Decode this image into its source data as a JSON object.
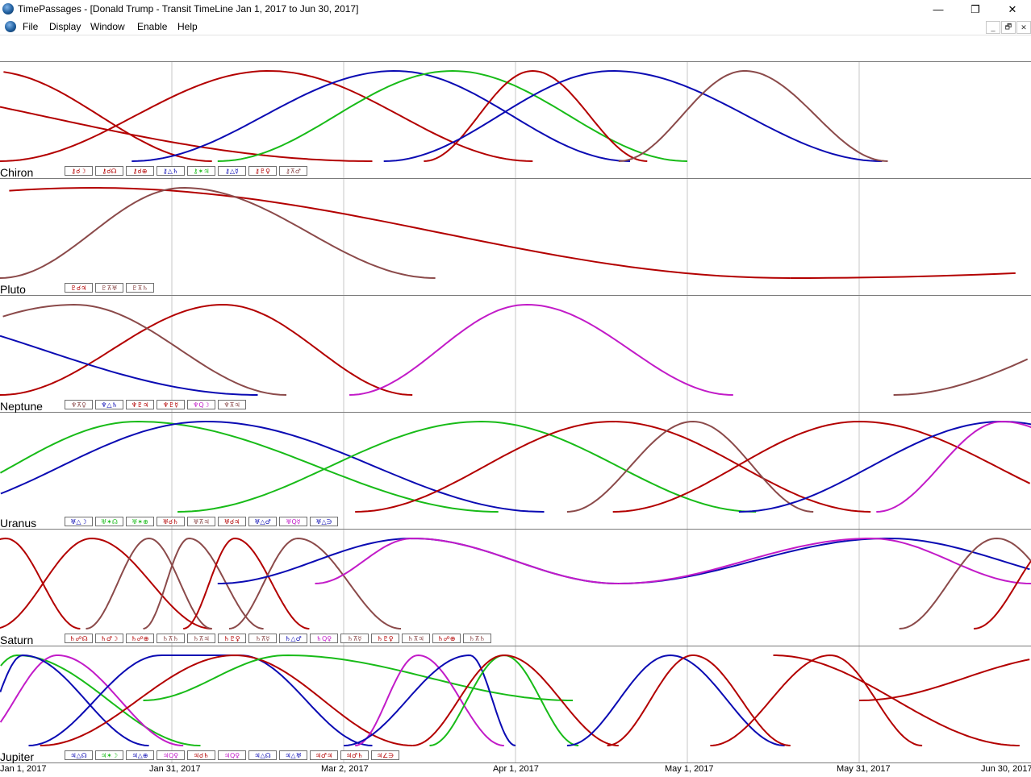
{
  "window": {
    "title": "TimePassages - [Donald Trump - Transit TimeLine Jan 1, 2017 to Jun 30, 2017]",
    "controls": {
      "minimize": "—",
      "maximize": "❐",
      "close": "✕"
    },
    "mdi_controls": {
      "minimize": "_",
      "restore": "🗗",
      "close": "✕"
    }
  },
  "menu": [
    "File",
    "Display",
    "Window",
    "Enable",
    "Help"
  ],
  "colors": {
    "red": "#b30000",
    "blue": "#0b0bb3",
    "green": "#18bb18",
    "brown": "#8b4a4a",
    "magenta": "#c21bc8",
    "grid": "#dadada",
    "separator": "#7a7a7a"
  },
  "chart_data": {
    "type": "line",
    "x_range": [
      "Jan 1, 2017",
      "Jun 30, 2017"
    ],
    "x_tick_labels": [
      "Jan 1, 2017",
      "Jan 31, 2017",
      "Mar 2, 2017",
      "Apr 1, 2017",
      "May 1, 2017",
      "May 31, 2017",
      "Jun 30, 2017"
    ],
    "grid": true,
    "panels": [
      {
        "planet": "Chiron",
        "aspects": [
          {
            "label": "⚷☌☽",
            "color": "red"
          },
          {
            "label": "⚷☌☊",
            "color": "red"
          },
          {
            "label": "⚷☌⊕",
            "color": "red"
          },
          {
            "label": "⚷△♄",
            "color": "blue"
          },
          {
            "label": "⚷✶♃",
            "color": "green"
          },
          {
            "label": "⚷△☿",
            "color": "blue"
          },
          {
            "label": "⚷♇♀",
            "color": "red"
          },
          {
            "label": "⚷⊼♂",
            "color": "brown"
          }
        ],
        "curves": [
          {
            "color": "red",
            "start": 0,
            "peak": -50,
            "end": 65
          },
          {
            "color": "red",
            "start": -60,
            "peak": -2,
            "end": 37
          },
          {
            "color": "red",
            "start": 0,
            "peak": 47,
            "end": 93
          },
          {
            "color": "blue",
            "start": 23,
            "peak": 69,
            "end": 110
          },
          {
            "color": "green",
            "start": 38,
            "peak": 79,
            "end": 120
          },
          {
            "color": "red",
            "start": 74,
            "peak": 93,
            "end": 113
          },
          {
            "color": "blue",
            "start": 67,
            "peak": 107,
            "end": 154
          },
          {
            "color": "brown",
            "start": 108,
            "peak": 130,
            "end": 155
          }
        ]
      },
      {
        "planet": "Pluto",
        "aspects": [
          {
            "label": "♇☌♃",
            "color": "red"
          },
          {
            "label": "♇⊼♅",
            "color": "brown"
          },
          {
            "label": "♇⊼♄",
            "color": "brown"
          }
        ],
        "curves": [
          {
            "color": "red",
            "start": -110,
            "peak": 16,
            "end": 138,
            "shape": "wide"
          },
          {
            "color": "red",
            "start": 138,
            "peak": 300,
            "end": 400,
            "shape": "rise"
          },
          {
            "color": "brown",
            "start": 0,
            "peak": 32,
            "end": 76
          },
          {
            "color": "brown",
            "start": 187,
            "peak": 240,
            "end": 300
          }
        ]
      },
      {
        "planet": "Neptune",
        "aspects": [
          {
            "label": "♆⊼♀",
            "color": "brown"
          },
          {
            "label": "♆△♄",
            "color": "blue"
          },
          {
            "label": "♆♇♃",
            "color": "red"
          },
          {
            "label": "♆♇☿",
            "color": "red"
          },
          {
            "label": "♆Q☽",
            "color": "magenta"
          },
          {
            "label": "♆⊼♃",
            "color": "brown"
          }
        ],
        "curves": [
          {
            "color": "red",
            "start": 0,
            "peak": 39,
            "end": 72
          },
          {
            "color": "brown",
            "start": -40,
            "peak": 13,
            "end": 50
          },
          {
            "color": "blue",
            "start": -30,
            "peak": 0,
            "end": 45,
            "shape": "fall"
          },
          {
            "color": "magenta",
            "start": 61,
            "peak": 92,
            "end": 128
          },
          {
            "color": "brown",
            "start": 156,
            "peak": 210,
            "end": 260
          }
        ]
      },
      {
        "planet": "Uranus",
        "aspects": [
          {
            "label": "♅△☽",
            "color": "blue"
          },
          {
            "label": "♅✶☊",
            "color": "green"
          },
          {
            "label": "♅✶⊕",
            "color": "green"
          },
          {
            "label": "♅☌♄",
            "color": "red"
          },
          {
            "label": "♅⊼♃",
            "color": "brown"
          },
          {
            "label": "♅☌♃",
            "color": "red"
          },
          {
            "label": "♅△♂",
            "color": "blue"
          },
          {
            "label": "♅Q☿",
            "color": "magenta"
          },
          {
            "label": "♅△∋",
            "color": "blue"
          }
        ],
        "curves": [
          {
            "color": "green",
            "start": -20,
            "peak": 24,
            "end": 87
          },
          {
            "color": "blue",
            "start": -15,
            "peak": 36,
            "end": 95
          },
          {
            "color": "green",
            "start": 31,
            "peak": 84,
            "end": 132
          },
          {
            "color": "red",
            "start": 62,
            "peak": 107,
            "end": 152
          },
          {
            "color": "brown",
            "start": 99,
            "peak": 121,
            "end": 142
          },
          {
            "color": "red",
            "start": 107,
            "peak": 150,
            "end": 198
          },
          {
            "color": "blue",
            "start": 129,
            "peak": 175,
            "end": 220
          },
          {
            "color": "magenta",
            "start": 153,
            "peak": 175,
            "end": 206
          },
          {
            "color": "blue",
            "start": 211,
            "peak": 240,
            "end": 270,
            "shape": "rise"
          }
        ]
      },
      {
        "planet": "Saturn",
        "aspects": [
          {
            "label": "♄☍☊",
            "color": "red"
          },
          {
            "label": "♄♂☽",
            "color": "red"
          },
          {
            "label": "♄☍⊕",
            "color": "red"
          },
          {
            "label": "♄⊼♄",
            "color": "brown"
          },
          {
            "label": "♄⊼♃",
            "color": "brown"
          },
          {
            "label": "♄♇♀",
            "color": "red"
          },
          {
            "label": "♄⊼☿",
            "color": "brown"
          },
          {
            "label": "♄△♂",
            "color": "blue"
          },
          {
            "label": "♄Q♀",
            "color": "magenta"
          },
          {
            "label": "♄⊼☿",
            "color": "brown"
          },
          {
            "label": "♄♇♀",
            "color": "red"
          },
          {
            "label": "♄⊼♃",
            "color": "brown"
          },
          {
            "label": "♄☍⊕",
            "color": "red"
          },
          {
            "label": "♄⊼♄",
            "color": "brown"
          }
        ],
        "curves": [
          {
            "color": "red",
            "start": -15,
            "peak": 1,
            "end": 14
          },
          {
            "color": "red",
            "start": -1,
            "peak": 16,
            "end": 37,
            "peakless": true
          },
          {
            "color": "brown",
            "start": 15,
            "peak": 26,
            "end": 37
          },
          {
            "color": "brown",
            "start": 25,
            "peak": 33,
            "end": 46
          },
          {
            "color": "red",
            "start": 32,
            "peak": 41,
            "end": 54
          },
          {
            "color": "brown",
            "start": 40,
            "peak": 52,
            "end": 70
          },
          {
            "color": "blue",
            "start": 38,
            "peak": 72,
            "end": 108,
            "sag": true
          },
          {
            "color": "magenta",
            "start": 55,
            "peak": 72,
            "end": 108,
            "sag": true
          },
          {
            "color": "blue",
            "start": 108,
            "peak": 155,
            "end": 195,
            "sag": true
          },
          {
            "color": "magenta",
            "start": 108,
            "peak": 152,
            "end": 180,
            "sag": true
          },
          {
            "color": "brown",
            "start": 157,
            "peak": 174,
            "end": 192
          },
          {
            "color": "red",
            "start": 170,
            "peak": 185,
            "end": 202
          },
          {
            "color": "brown",
            "start": 180,
            "peak": 193,
            "end": 210
          },
          {
            "color": "red",
            "start": 188,
            "peak": 200,
            "end": 213
          },
          {
            "color": "brown",
            "start": 200,
            "peak": 210,
            "end": 220
          }
        ]
      },
      {
        "planet": "Jupiter",
        "aspects": [
          {
            "label": "♃△☊",
            "color": "blue"
          },
          {
            "label": "♃✶☽",
            "color": "green"
          },
          {
            "label": "♃△⊕",
            "color": "blue"
          },
          {
            "label": "♃Q♀",
            "color": "magenta"
          },
          {
            "label": "♃☌♄",
            "color": "red"
          },
          {
            "label": "♃Q♀",
            "color": "magenta"
          },
          {
            "label": "♃△☊",
            "color": "blue"
          },
          {
            "label": "♃△♅",
            "color": "blue"
          },
          {
            "label": "♃♂♃",
            "color": "red"
          },
          {
            "label": "♃♂♄",
            "color": "red"
          },
          {
            "label": "♃∠∋",
            "color": "red"
          }
        ],
        "curves": [
          {
            "color": "green",
            "start": -10,
            "peak": 3,
            "end": 35
          },
          {
            "color": "magenta",
            "start": -5,
            "peak": 10,
            "end": 32
          },
          {
            "color": "blue",
            "start": -5,
            "peak": 4,
            "end": 26
          },
          {
            "color": "blue",
            "start": 5,
            "peak": 35,
            "end": 65,
            "shape": "plateau"
          },
          {
            "color": "red",
            "start": 7,
            "peak": 41,
            "end": 72
          },
          {
            "color": "green",
            "start": 25,
            "peak": 50,
            "end": 100,
            "sag": true
          },
          {
            "color": "magenta",
            "start": 62,
            "peak": 73,
            "end": 88
          },
          {
            "color": "blue",
            "start": 60,
            "peak": 82,
            "end": 90
          },
          {
            "color": "green",
            "start": 75,
            "peak": 88,
            "end": 101
          },
          {
            "color": "red",
            "start": 72,
            "peak": 88,
            "end": 108
          },
          {
            "color": "blue",
            "start": 99,
            "peak": 117,
            "end": 137
          },
          {
            "color": "red",
            "start": 106,
            "peak": 121,
            "end": 138
          },
          {
            "color": "red",
            "start": 124,
            "peak": 145,
            "end": 161
          },
          {
            "color": "red",
            "start": 135,
            "peak": 147,
            "end": 178,
            "shape": "fall"
          },
          {
            "color": "red",
            "start": 150,
            "peak": 187,
            "end": 220,
            "sag": true
          }
        ]
      }
    ]
  }
}
